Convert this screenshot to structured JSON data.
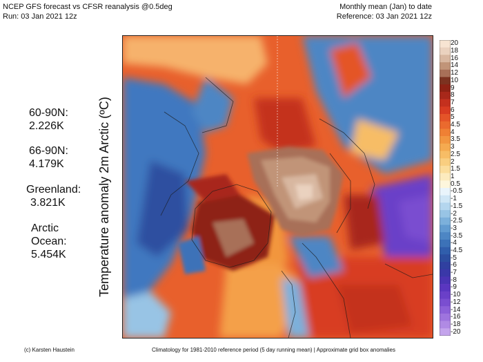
{
  "header": {
    "line1": "NCEP GFS forecast vs CFSR reanalysis @0.5deg",
    "line2": "Run: 03 Jan 2021 12z",
    "right1": "Monthly mean (Jan) to date",
    "right2": "Reference: 03 Jan 2021 12z"
  },
  "axis_title": "Temperature anomaly 2m Arctic (ºC)",
  "stats": [
    {
      "label": "60-90N:",
      "value": "2.226K"
    },
    {
      "label": "66-90N:",
      "value": "4.179K"
    },
    {
      "label": "Greenland:",
      "value": "3.821K"
    },
    {
      "label": "Arctic Ocean:",
      "value": "5.454K",
      "label_line1": "Arctic",
      "label_line2": "Ocean:"
    }
  ],
  "colorbar": {
    "labels": [
      "20",
      "18",
      "16",
      "14",
      "12",
      "10",
      "9",
      "8",
      "7",
      "6",
      "5",
      "4.5",
      "4",
      "3.5",
      "3",
      "2.5",
      "2",
      "1.5",
      "1",
      "0.5",
      "-0.5",
      "-1",
      "-1.5",
      "-2",
      "-2.5",
      "-3",
      "-3.5",
      "-4",
      "-4.5",
      "-5",
      "-6",
      "-7",
      "-8",
      "-9",
      "-10",
      "-12",
      "-14",
      "-16",
      "-18",
      "-20"
    ],
    "colors": [
      "#f7e4d2",
      "#ead2bf",
      "#d8b7a0",
      "#c19478",
      "#a87058",
      "#7c3220",
      "#8e2214",
      "#a8281a",
      "#c4301e",
      "#d83c22",
      "#e45428",
      "#ea6a2e",
      "#ef8034",
      "#f29640",
      "#f5aa50",
      "#f7bd66",
      "#f9ce80",
      "#fbdd9c",
      "#fcebbe",
      "#fdf6dc",
      "#e9f4fb",
      "#cfe6f5",
      "#b4d6ee",
      "#98c4e5",
      "#7cb0db",
      "#629bd0",
      "#4d86c4",
      "#3c72b8",
      "#305eac",
      "#2c4ea0",
      "#3040a0",
      "#3a38a8",
      "#4a34b4",
      "#5a36c0",
      "#6a40c8",
      "#7a4ed0",
      "#8c60d8",
      "#9e74de",
      "#b08ae4",
      "#c4a4ec"
    ]
  },
  "footer": {
    "left": "(c) Karsten Haustein",
    "right": "Climatology for 1981-2010 reference period (5 day running mean) | Approximate grid box anomalies"
  }
}
